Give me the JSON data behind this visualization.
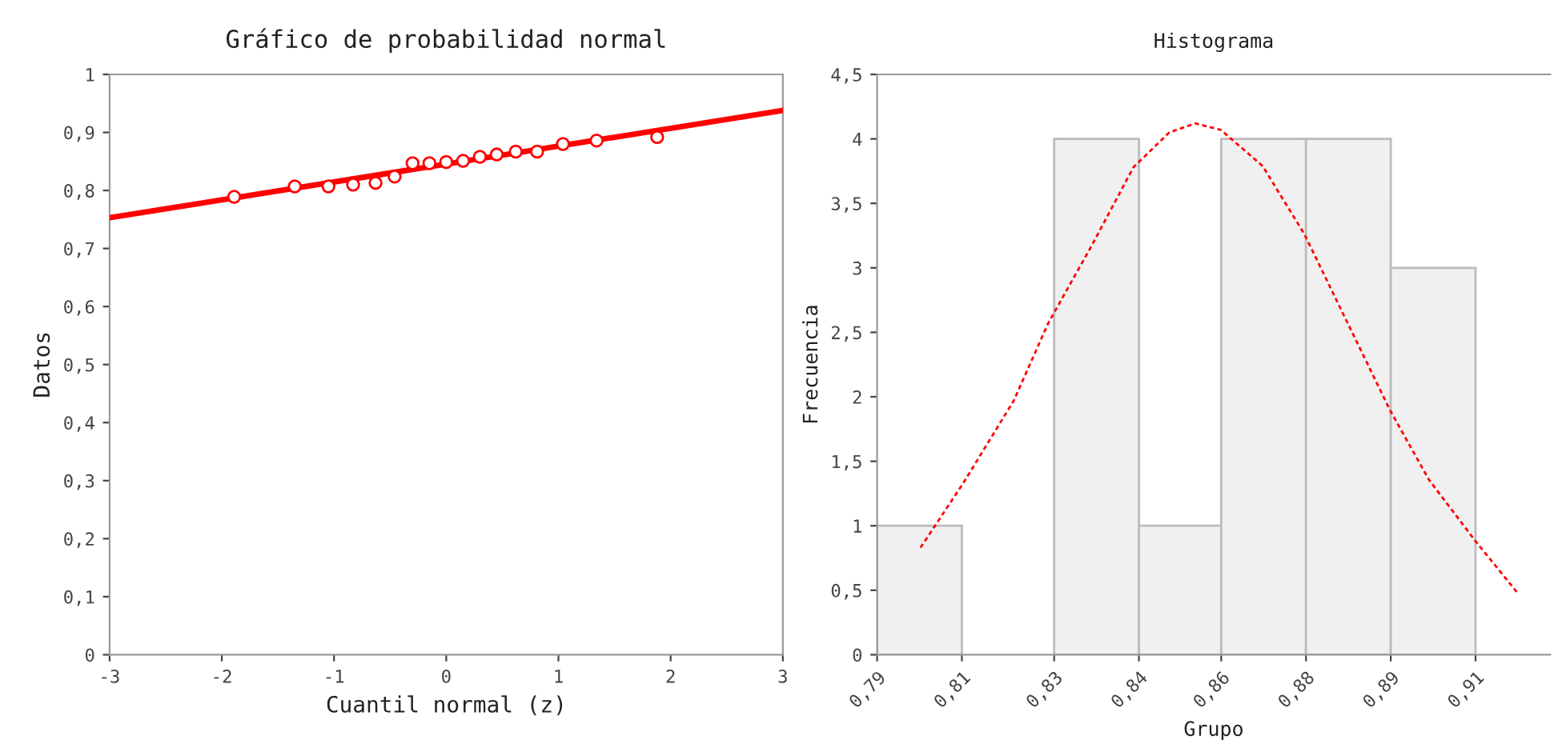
{
  "chart_data": [
    {
      "type": "scatter",
      "title": "Gráfico de probabilidad normal",
      "xlabel": "Cuantil normal (z)",
      "ylabel": "Datos",
      "xlim": [
        -3,
        3
      ],
      "xticks": [
        -3,
        -2,
        -1,
        0,
        1,
        2,
        3
      ],
      "ylim": [
        0,
        1
      ],
      "yticks": [
        {
          "value": 0,
          "label": "0"
        },
        {
          "value": 0.1,
          "label": "0,1"
        },
        {
          "value": 0.2,
          "label": "0,2"
        },
        {
          "value": 0.3,
          "label": "0,3"
        },
        {
          "value": 0.4,
          "label": "0,4"
        },
        {
          "value": 0.5,
          "label": "0,5"
        },
        {
          "value": 0.6,
          "label": "0,6"
        },
        {
          "value": 0.7,
          "label": "0,7"
        },
        {
          "value": 0.8,
          "label": "0,8"
        },
        {
          "value": 0.9,
          "label": "0,9"
        },
        {
          "value": 1,
          "label": "1"
        }
      ],
      "grid": false,
      "legend": false,
      "series": [
        {
          "type": "scatter",
          "color": "#ff0000",
          "marker": "circle",
          "x": [
            -1.89,
            -1.35,
            -1.05,
            -0.83,
            -0.63,
            -0.46,
            -0.3,
            -0.15,
            0.0,
            0.15,
            0.3,
            0.45,
            0.62,
            0.81,
            1.04,
            1.34,
            1.88
          ],
          "values": [
            0.789,
            0.807,
            0.807,
            0.81,
            0.813,
            0.824,
            0.847,
            0.847,
            0.849,
            0.851,
            0.858,
            0.862,
            0.867,
            0.867,
            0.88,
            0.886,
            0.892
          ]
        },
        {
          "type": "line",
          "color": "#ff0000",
          "line_style": "solid",
          "x": [
            -3,
            3
          ],
          "values": [
            0.753,
            0.938
          ]
        }
      ]
    },
    {
      "type": "histogram",
      "title": "Histograma",
      "xlabel": "Grupo",
      "ylabel": "Frecuencia",
      "bins": [
        0.79,
        0.807,
        0.8255,
        0.8425,
        0.859,
        0.876,
        0.893,
        0.91
      ],
      "values": [
        1,
        0,
        4,
        1,
        4,
        4,
        3
      ],
      "color": "#f0f0f0",
      "xlim": [
        0.79,
        0.925
      ],
      "xticks": [
        {
          "value": 0.79,
          "label": "0,79"
        },
        {
          "value": 0.807,
          "label": "0,81"
        },
        {
          "value": 0.8255,
          "label": "0,83"
        },
        {
          "value": 0.8425,
          "label": "0,84"
        },
        {
          "value": 0.859,
          "label": "0,86"
        },
        {
          "value": 0.876,
          "label": "0,88"
        },
        {
          "value": 0.893,
          "label": "0,89"
        },
        {
          "value": 0.91,
          "label": "0,91"
        }
      ],
      "ylim": [
        0,
        4.5
      ],
      "yticks": [
        {
          "value": 0,
          "label": "0"
        },
        {
          "value": 0.5,
          "label": "0,5"
        },
        {
          "value": 1,
          "label": "1"
        },
        {
          "value": 1.5,
          "label": "1,5"
        },
        {
          "value": 2,
          "label": "2"
        },
        {
          "value": 2.5,
          "label": "2,5"
        },
        {
          "value": 3,
          "label": "3"
        },
        {
          "value": 3.5,
          "label": "3,5"
        },
        {
          "value": 4,
          "label": "4"
        },
        {
          "value": 4.5,
          "label": "4,5"
        }
      ],
      "grid": false,
      "legend": false,
      "series": [
        {
          "type": "line",
          "color": "#ff0000",
          "line_style": "dashed",
          "x": [
            0.7987,
            0.8071,
            0.8174,
            0.8243,
            0.833,
            0.8414,
            0.8486,
            0.8538,
            0.8589,
            0.8673,
            0.8757,
            0.885,
            0.8928,
            0.9006,
            0.9098,
            0.9184
          ],
          "values": [
            0.83,
            1.32,
            1.97,
            2.57,
            3.17,
            3.78,
            4.05,
            4.12,
            4.07,
            3.79,
            3.26,
            2.52,
            1.9,
            1.36,
            0.89,
            0.48
          ]
        }
      ]
    }
  ]
}
